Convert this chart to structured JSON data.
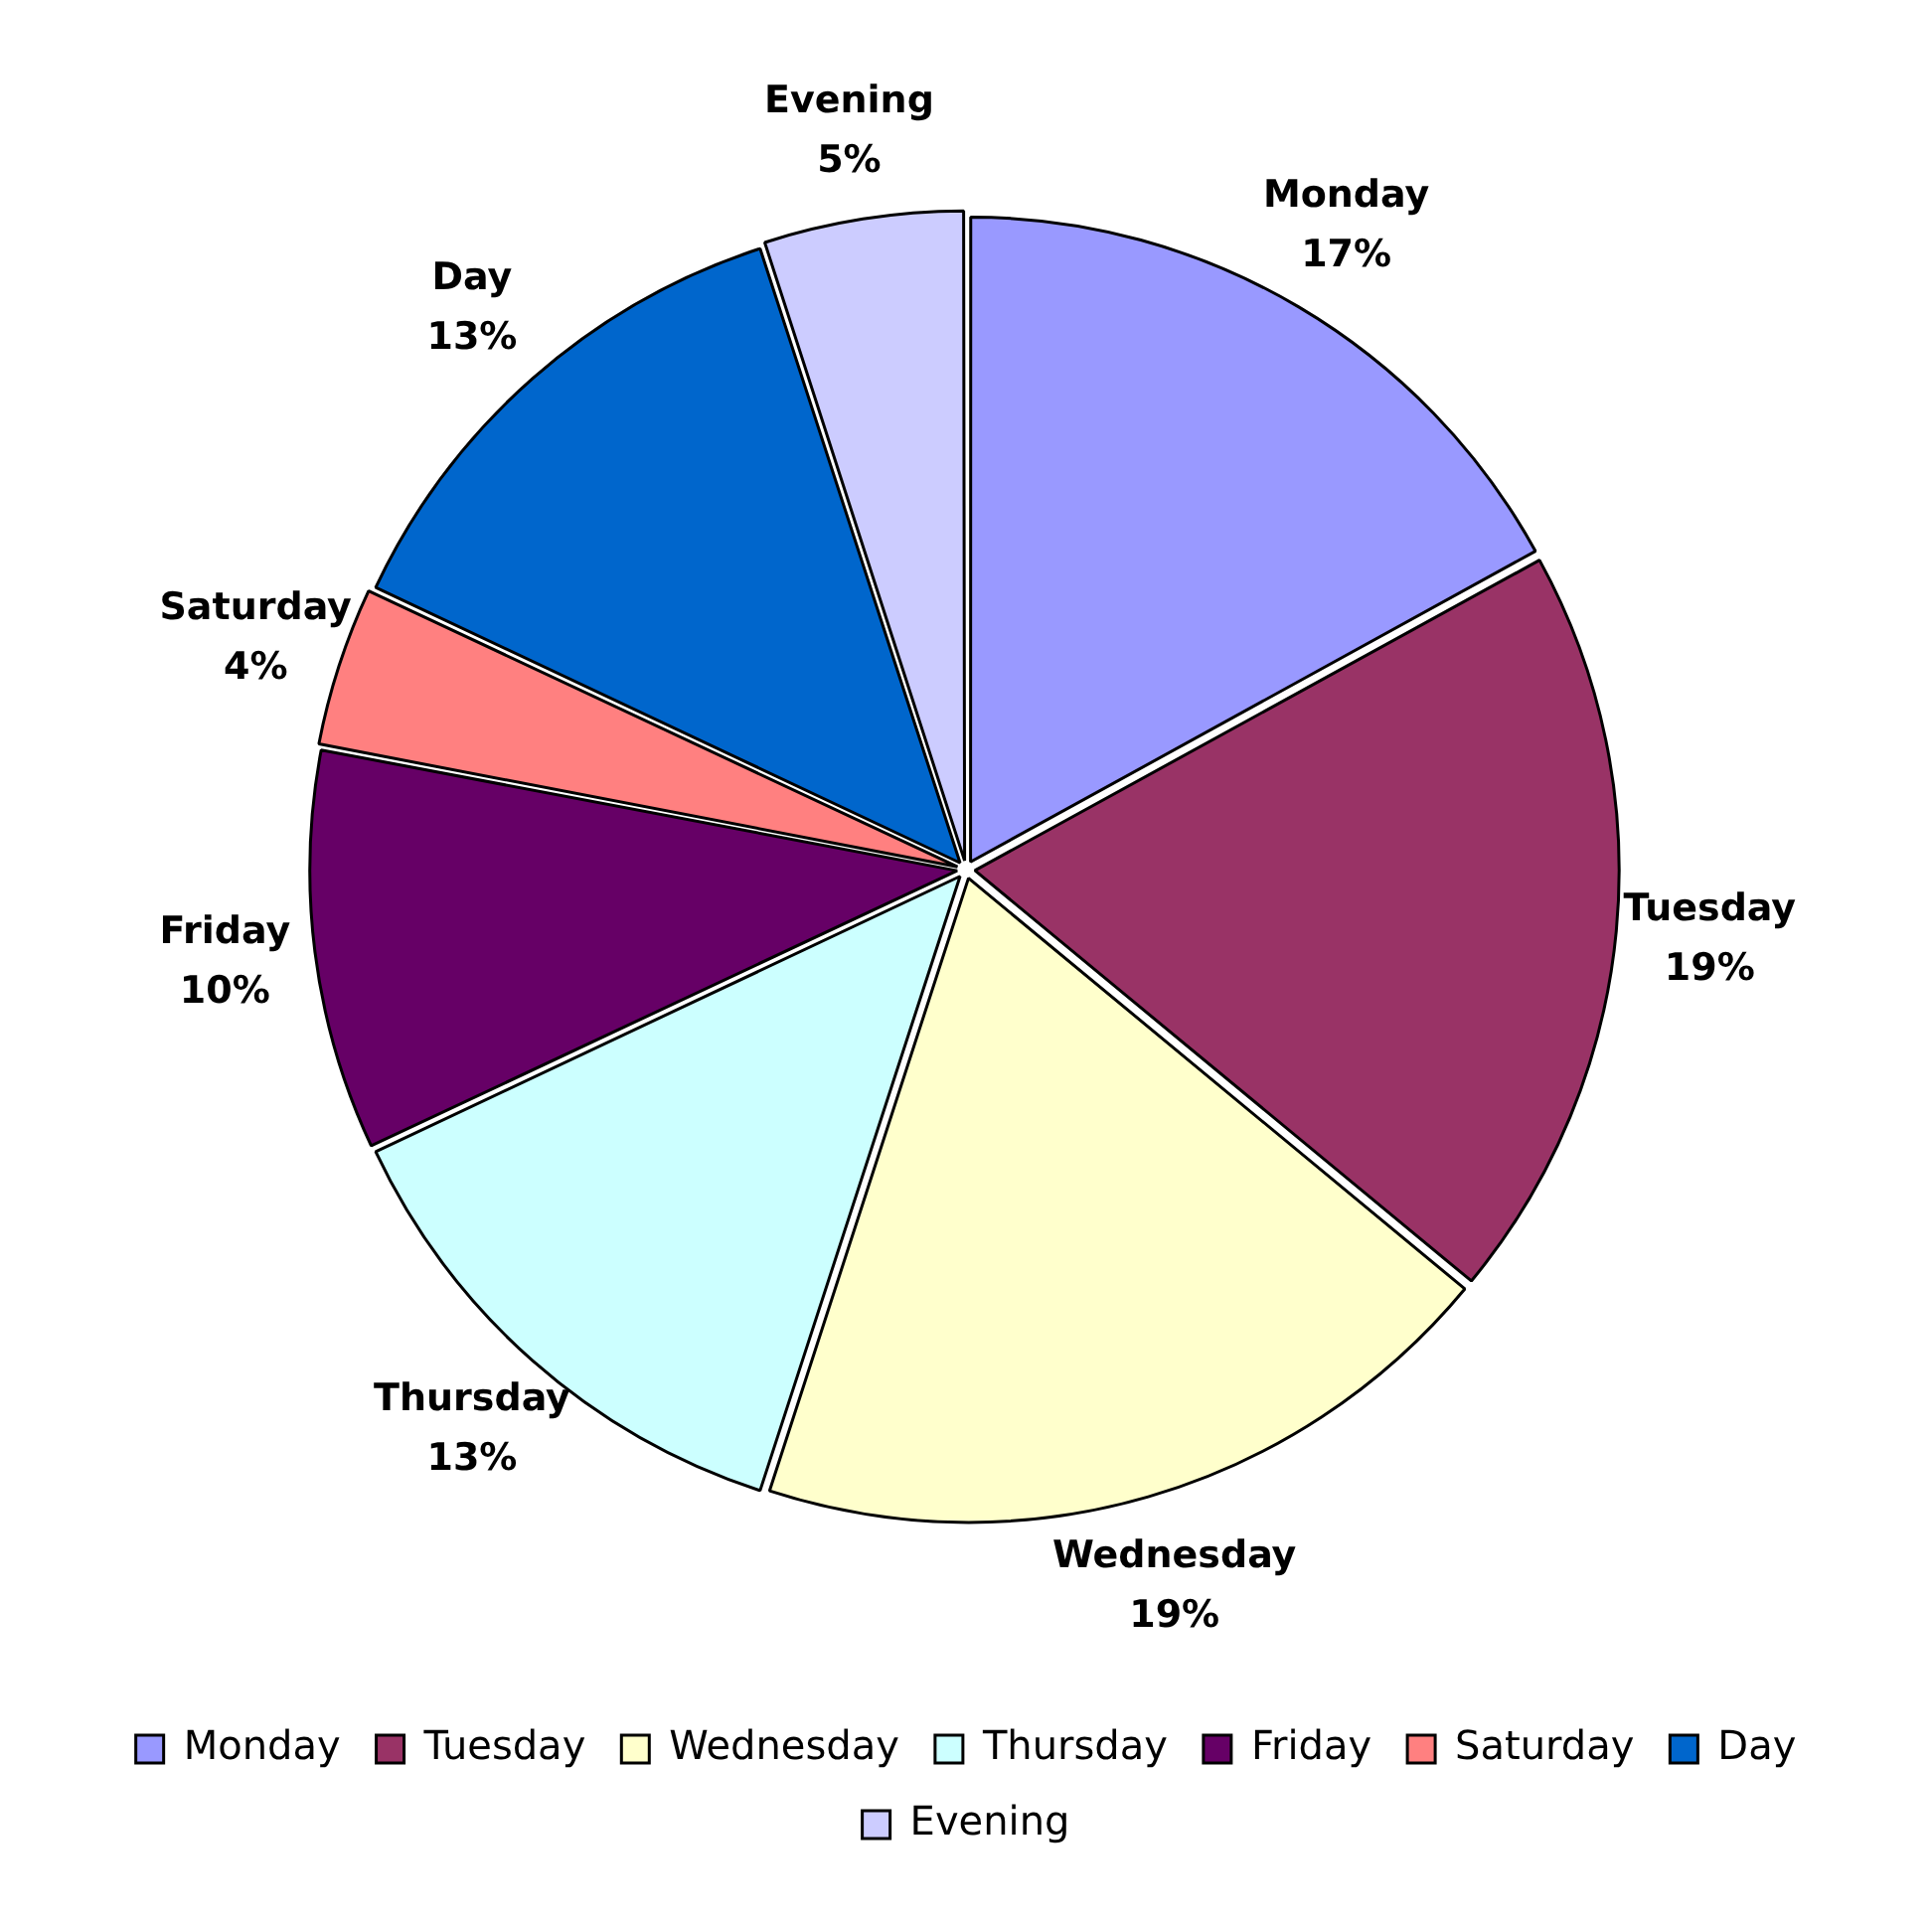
{
  "chart_data": {
    "type": "pie",
    "categories": [
      "Monday",
      "Tuesday",
      "Wednesday",
      "Thursday",
      "Friday",
      "Saturday",
      "Day",
      "Evening"
    ],
    "values": [
      17,
      19,
      19,
      13,
      10,
      4,
      13,
      5
    ],
    "colors": [
      "#9999ff",
      "#993366",
      "#ffffcc",
      "#ccffff",
      "#660066",
      "#ff8080",
      "#0066cc",
      "#ccccff"
    ],
    "value_labels": [
      "17%",
      "19%",
      "19%",
      "13%",
      "10%",
      "4%",
      "13%",
      "5%"
    ],
    "legend": "bottom"
  }
}
